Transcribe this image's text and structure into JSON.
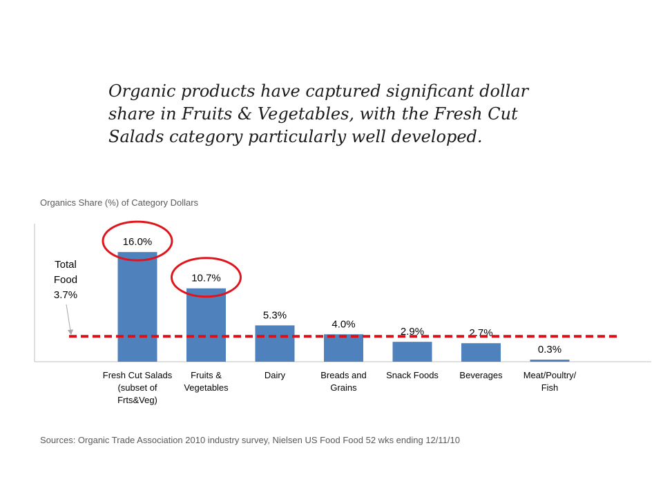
{
  "headline": "Organic products have captured significant dollar share in Fruits & Vegetables, with the Fresh Cut Salads category particularly well developed.",
  "source_note": "Sources: Organic Trade Association 2010 industry survey, Nielsen US Food Food 52 wks ending 12/11/10",
  "colors": {
    "bar": "#4f81bd",
    "reference_line": "#d9111a",
    "highlight_circle": "#e0141c",
    "axis": "#bfbfbf"
  },
  "chart_data": {
    "type": "bar",
    "title": "Organics Share (%) of Category Dollars",
    "xlabel": "",
    "ylabel": "",
    "ylim": [
      0,
      18
    ],
    "grid": false,
    "categories": [
      [
        "Fresh Cut Salads",
        "(subset of",
        "Frts&Veg)"
      ],
      [
        "Fruits &",
        "Vegetables"
      ],
      [
        "Dairy"
      ],
      [
        "Breads and",
        "Grains"
      ],
      [
        "Snack Foods"
      ],
      [
        "Beverages"
      ],
      [
        "Meat/Poultry/",
        "Fish"
      ]
    ],
    "values": [
      16.0,
      10.7,
      5.3,
      4.0,
      2.9,
      2.7,
      0.3
    ],
    "value_labels": [
      "16.0%",
      "10.7%",
      "5.3%",
      "4.0%",
      "2.9%",
      "2.7%",
      "0.3%"
    ],
    "highlighted": [
      0,
      1
    ],
    "reference_line": {
      "value": 3.7,
      "label": [
        "Total",
        "Food",
        "3.7%"
      ],
      "style": "dashed"
    }
  }
}
